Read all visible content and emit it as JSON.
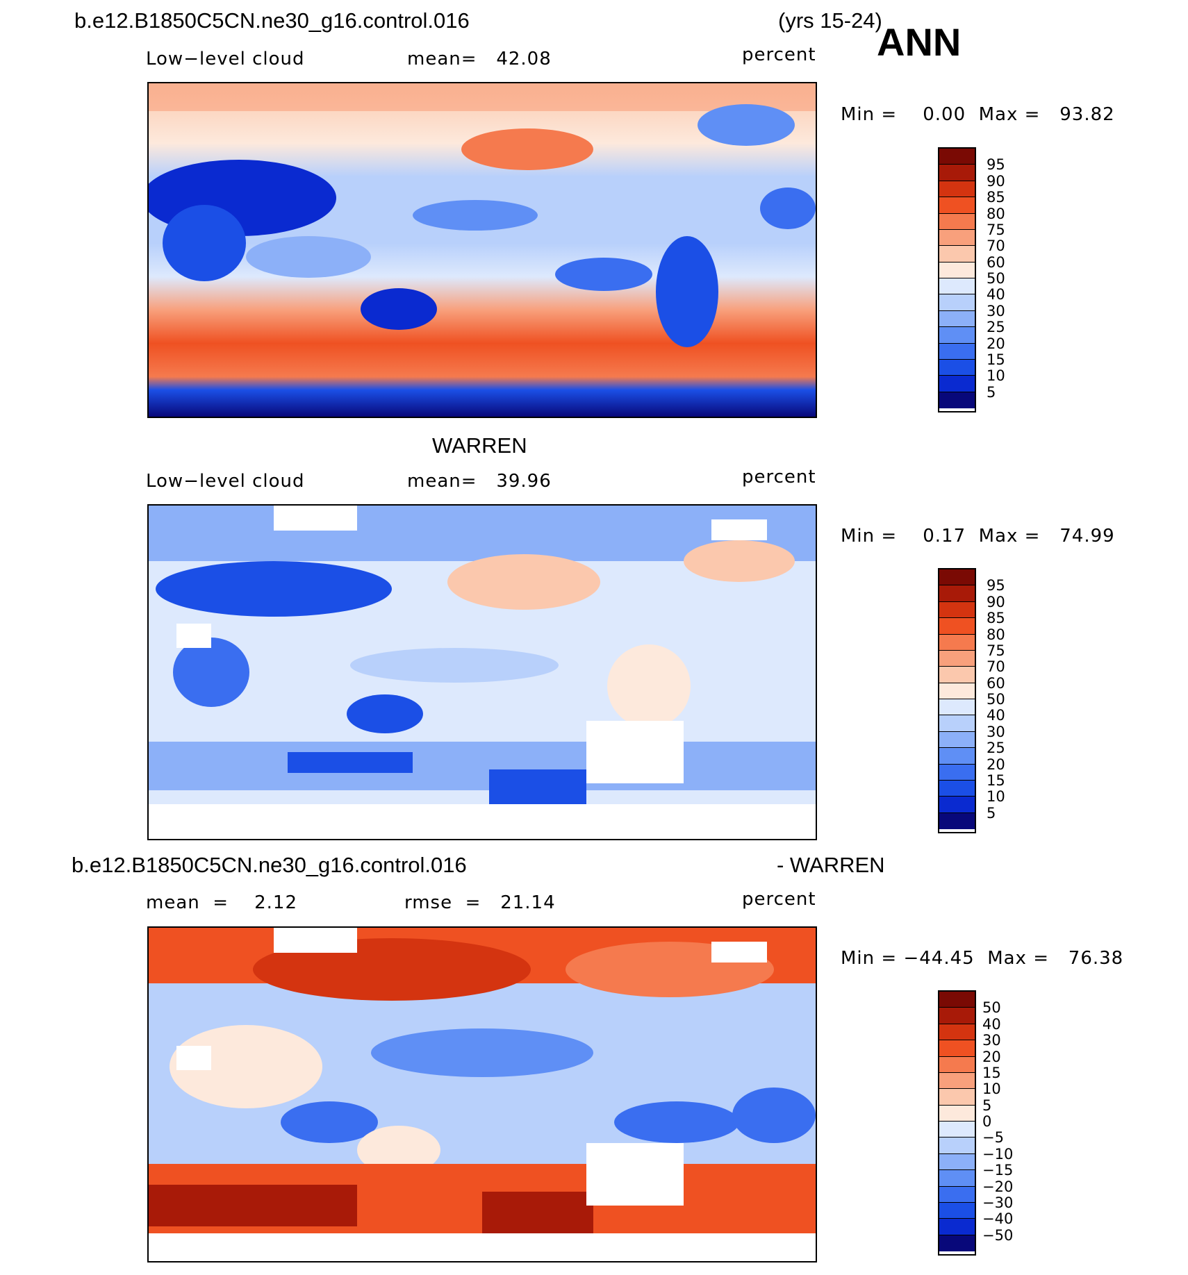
{
  "header": {
    "case_name": "b.e12.B1850C5CN.ne30_g16.control.016",
    "years": "(yrs 15-24)",
    "season": "ANN"
  },
  "panels": [
    {
      "title": "",
      "left_label": "Low−level cloud",
      "mid_label": "mean=   42.08",
      "units": "percent",
      "minmax": "Min =    0.00  Max =   93.82",
      "colorbar_ticks": [
        "95",
        "90",
        "85",
        "80",
        "75",
        "70",
        "60",
        "50",
        "40",
        "30",
        "25",
        "20",
        "15",
        "10",
        "5"
      ]
    },
    {
      "title": "WARREN",
      "left_label": "Low−level cloud",
      "mid_label": "mean=   39.96",
      "units": "percent",
      "minmax": "Min =    0.17  Max =   74.99",
      "colorbar_ticks": [
        "95",
        "90",
        "85",
        "80",
        "75",
        "70",
        "60",
        "50",
        "40",
        "30",
        "25",
        "20",
        "15",
        "10",
        "5"
      ]
    },
    {
      "title_left": "b.e12.B1850C5CN.ne30_g16.control.016",
      "title_right": "- WARREN",
      "left_label": "mean  =    2.12",
      "mid_label": "rmse  =   21.14",
      "units": "percent",
      "minmax": "Min = −44.45  Max =   76.38",
      "colorbar_ticks": [
        "50",
        "40",
        "30",
        "20",
        "15",
        "10",
        "5",
        "0",
        "−5",
        "−10",
        "−15",
        "−20",
        "−30",
        "−40",
        "−50"
      ]
    }
  ],
  "colorbar_colors": [
    "#08087a",
    "#0a2ad0",
    "#1b4fe6",
    "#3a6ef0",
    "#5f8ff5",
    "#8cb0f8",
    "#b8d0fb",
    "#dde9fd",
    "#fde9dc",
    "#fbc8ad",
    "#f8a07c",
    "#f57a4e",
    "#ef5122",
    "#d43410",
    "#a81a08",
    "#7a0a04"
  ],
  "chart_data": [
    {
      "type": "heatmap",
      "title": "b.e12.B1850C5CN.ne30_g16.control.016",
      "subtitle": "Low−level cloud",
      "units": "percent",
      "mean": 42.08,
      "min": 0.0,
      "max": 93.82,
      "levels": [
        5,
        10,
        15,
        20,
        25,
        30,
        40,
        50,
        60,
        70,
        75,
        80,
        85,
        90,
        95
      ]
    },
    {
      "type": "heatmap",
      "title": "WARREN",
      "subtitle": "Low−level cloud",
      "units": "percent",
      "mean": 39.96,
      "min": 0.17,
      "max": 74.99,
      "levels": [
        5,
        10,
        15,
        20,
        25,
        30,
        40,
        50,
        60,
        70,
        75,
        80,
        85,
        90,
        95
      ]
    },
    {
      "type": "heatmap",
      "title": "b.e12.B1850C5CN.ne30_g16.control.016 - WARREN",
      "units": "percent",
      "mean": 2.12,
      "rmse": 21.14,
      "min": -44.45,
      "max": 76.38,
      "levels": [
        -50,
        -40,
        -30,
        -20,
        -15,
        -10,
        -5,
        0,
        5,
        10,
        15,
        20,
        30,
        40,
        50
      ]
    }
  ]
}
